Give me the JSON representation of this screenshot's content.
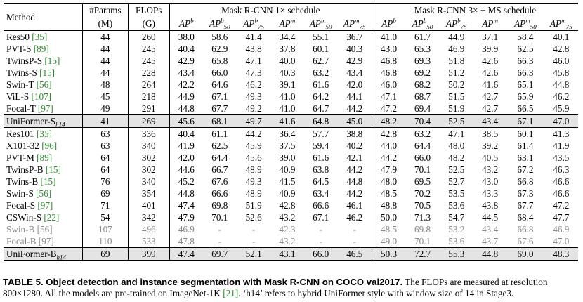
{
  "header": {
    "method": "Method",
    "params": "#Params",
    "params_unit": "(M)",
    "flops": "FLOPs",
    "flops_unit": "(G)",
    "group1": "Mask R-CNN 1× schedule",
    "group2": "Mask R-CNN 3× + MS schedule",
    "metrics": [
      {
        "base": "AP",
        "sup": "b",
        "sub": ""
      },
      {
        "base": "AP",
        "sup": "b",
        "sub": "50"
      },
      {
        "base": "AP",
        "sup": "b",
        "sub": "75"
      },
      {
        "base": "AP",
        "sup": "m",
        "sub": ""
      },
      {
        "base": "AP",
        "sup": "m",
        "sub": "50"
      },
      {
        "base": "AP",
        "sup": "m",
        "sub": "75"
      }
    ]
  },
  "rows": [
    {
      "name": "Res50",
      "cite": "[35]",
      "params": "44",
      "flops": "260",
      "v": [
        "38.0",
        "58.6",
        "41.4",
        "34.4",
        "55.1",
        "36.7",
        "41.0",
        "61.7",
        "44.9",
        "37.1",
        "58.4",
        "40.1"
      ],
      "bold": []
    },
    {
      "name": "PVT-S",
      "cite": "[89]",
      "params": "44",
      "flops": "245",
      "v": [
        "40.4",
        "62.9",
        "43.8",
        "37.8",
        "60.1",
        "40.3",
        "43.0",
        "65.3",
        "46.9",
        "39.9",
        "62.5",
        "42.8"
      ],
      "bold": []
    },
    {
      "name": "TwinsP-S",
      "cite": "[15]",
      "params": "44",
      "flops": "245",
      "v": [
        "42.9",
        "65.8",
        "47.1",
        "40.0",
        "62.7",
        "42.9",
        "46.8",
        "69.3",
        "51.8",
        "42.6",
        "66.3",
        "46.0"
      ],
      "bold": []
    },
    {
      "name": "Twins-S",
      "cite": "[15]",
      "params": "44",
      "flops": "228",
      "v": [
        "43.4",
        "66.0",
        "47.3",
        "40.3",
        "63.2",
        "43.4",
        "46.8",
        "69.2",
        "51.2",
        "42.6",
        "66.3",
        "45.8"
      ],
      "bold": []
    },
    {
      "name": "Swin-T",
      "cite": "[56]",
      "params": "48",
      "flops": "264",
      "v": [
        "42.2",
        "64.6",
        "46.2",
        "39.1",
        "61.6",
        "42.0",
        "46.0",
        "68.2",
        "50.2",
        "41.6",
        "65.1",
        "44.8"
      ],
      "bold": []
    },
    {
      "name": "ViL-S",
      "cite": "[107]",
      "params": "45",
      "flops": "218",
      "v": [
        "44.9",
        "67.1",
        "49.3",
        "41.0",
        "64.2",
        "44.1",
        "47.1",
        "68.7",
        "51.5",
        "42.7",
        "65.9",
        "46.2"
      ],
      "bold": []
    },
    {
      "name": "Focal-T",
      "cite": "[97]",
      "params": "49",
      "flops": "291",
      "v": [
        "44.8",
        "67.7",
        "49.2",
        "41.0",
        "64.7",
        "44.2",
        "47.2",
        "69.4",
        "51.9",
        "42.7",
        "66.5",
        "45.9"
      ],
      "bold": []
    },
    {
      "name": "UniFormer-S",
      "sub": "h14",
      "cite": "",
      "params": "41",
      "flops": "269",
      "v": [
        "45.6",
        "68.1",
        "49.7",
        "41.6",
        "64.8",
        "45.0",
        "48.2",
        "70.4",
        "52.5",
        "43.4",
        "67.1",
        "47.0"
      ],
      "bold": [
        0,
        1,
        2,
        3,
        4,
        5,
        6,
        7,
        8,
        9,
        10,
        11
      ],
      "highlight": true
    },
    {
      "name": "Res101",
      "cite": "[35]",
      "params": "63",
      "flops": "336",
      "v": [
        "40.4",
        "61.1",
        "44.2",
        "36.4",
        "57.7",
        "38.8",
        "42.8",
        "63.2",
        "47.1",
        "38.5",
        "60.1",
        "41.3"
      ],
      "bold": [],
      "section_start": true
    },
    {
      "name": "X101-32",
      "cite": "[96]",
      "params": "63",
      "flops": "340",
      "v": [
        "41.9",
        "62.5",
        "45.9",
        "37.5",
        "59.4",
        "40.2",
        "44.0",
        "64.4",
        "48.0",
        "39.2",
        "61.4",
        "41.9"
      ],
      "bold": []
    },
    {
      "name": "PVT-M",
      "cite": "[89]",
      "params": "64",
      "flops": "302",
      "v": [
        "42.0",
        "64.4",
        "45.6",
        "39.0",
        "61.6",
        "42.1",
        "44.2",
        "66.0",
        "48.2",
        "40.5",
        "63.1",
        "43.5"
      ],
      "bold": []
    },
    {
      "name": "TwinsP-B",
      "cite": "[15]",
      "params": "64",
      "flops": "302",
      "v": [
        "44.6",
        "66.7",
        "48.9",
        "40.9",
        "63.8",
        "44.2",
        "47.9",
        "70.1",
        "52.5",
        "43.2",
        "67.2",
        "46.3"
      ],
      "bold": []
    },
    {
      "name": "Twins-B",
      "cite": "[15]",
      "params": "76",
      "flops": "340",
      "v": [
        "45.2",
        "67.6",
        "49.3",
        "41.5",
        "64.5",
        "44.8",
        "48.0",
        "69.5",
        "52.7",
        "43.0",
        "66.8",
        "46.6"
      ],
      "bold": []
    },
    {
      "name": "Swin-S",
      "cite": "[56]",
      "params": "69",
      "flops": "354",
      "v": [
        "44.8",
        "66.6",
        "48.9",
        "40.9",
        "63.4",
        "44.2",
        "48.5",
        "70.2",
        "53.5",
        "43.3",
        "67.3",
        "46.6"
      ],
      "bold": []
    },
    {
      "name": "Focal-S",
      "cite": "[97]",
      "params": "71",
      "flops": "401",
      "v": [
        "47.4",
        "69.8",
        "51.9",
        "42.8",
        "66.6",
        "46.1",
        "48.8",
        "70.5",
        "53.6",
        "43.8",
        "67.7",
        "47.2"
      ],
      "bold": []
    },
    {
      "name": "CSWin-S",
      "cite": "[22]",
      "params": "54",
      "flops": "342",
      "v": [
        "47.9",
        "70.1",
        "52.6",
        "43.2",
        "67.1",
        "46.2",
        "50.0",
        "71.3",
        "54.7",
        "44.5",
        "68.4",
        "47.7"
      ],
      "bold": [
        0,
        1,
        2,
        3,
        4
      ]
    },
    {
      "name": "Swin-B",
      "cite": "[56]",
      "params": "107",
      "flops": "496",
      "v": [
        "46.9",
        "-",
        "-",
        "42.3",
        "-",
        "-",
        "48.5",
        "69.8",
        "53.2",
        "43.4",
        "66.8",
        "46.9"
      ],
      "bold": [],
      "gray": true
    },
    {
      "name": "Focal-B",
      "cite": "[97]",
      "params": "110",
      "flops": "533",
      "v": [
        "47.8",
        "-",
        "-",
        "43.2",
        "-",
        "-",
        "49.0",
        "70.1",
        "53.6",
        "43.7",
        "67.6",
        "47.0"
      ],
      "bold": [],
      "gray": true
    },
    {
      "name": "UniFormer-B",
      "sub": "h14",
      "cite": "",
      "params": "69",
      "flops": "399",
      "v": [
        "47.4",
        "69.7",
        "52.1",
        "43.1",
        "66.0",
        "46.5",
        "50.3",
        "72.7",
        "55.3",
        "44.8",
        "69.0",
        "48.3"
      ],
      "bold": [
        5,
        6,
        7,
        8,
        9,
        10,
        11
      ],
      "highlight": true
    }
  ],
  "caption": {
    "label": "TABLE 5. Object detection and instance segmentation with Mask R-CNN on COCO val2017.",
    "text1": " The FLOPs are measured at resolution 800×1280. All the models are pre-trained on ImageNet-1K ",
    "cite": "[21]",
    "text2": ". ‘h14’ refers to hybrid UniFormer style with window size of 14 in Stage3."
  }
}
